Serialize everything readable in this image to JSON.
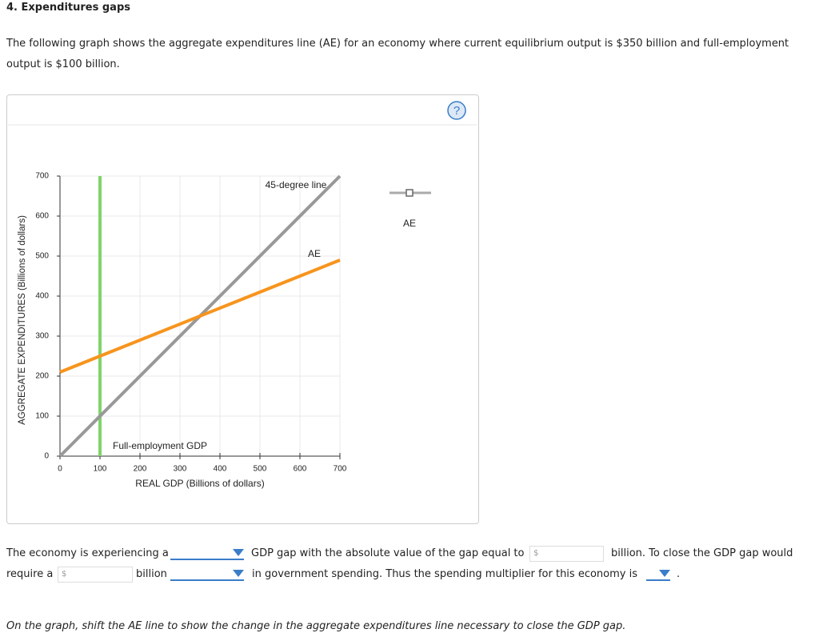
{
  "heading": "4. Expenditures gaps",
  "intro": "The following graph shows the aggregate expenditures line (AE) for an economy where current equilibrium output is $350 billion and full-employment output is $100 billion.",
  "chart_data": {
    "type": "line",
    "xlabel": "REAL GDP (Billions of dollars)",
    "ylabel": "AGGREGATE EXPENDITURES (Billions of dollars)",
    "xlim": [
      0,
      700
    ],
    "ylim": [
      0,
      700
    ],
    "xticks": [
      0,
      100,
      200,
      300,
      400,
      500,
      600,
      700
    ],
    "yticks": [
      0,
      100,
      200,
      300,
      400,
      500,
      600,
      700
    ],
    "grid": true,
    "series": [
      {
        "name": "45-degree line",
        "color": "#999999",
        "x": [
          0,
          700
        ],
        "values": [
          0,
          700
        ]
      },
      {
        "name": "AE",
        "color": "#f7941d",
        "x": [
          0,
          700
        ],
        "values": [
          210,
          490
        ]
      }
    ],
    "vline": {
      "name": "Full-employment GDP",
      "color": "#7ed46b",
      "x": 100
    },
    "legend": {
      "name": "AE"
    }
  },
  "question": {
    "row1": [
      "The economy is experiencing a",
      "GDP gap with the absolute value of the gap equal to",
      "billion. To close the GDP gap would"
    ],
    "row2": [
      "require a",
      "billion",
      "in government spending. Thus the spending multiplier for this economy is",
      "."
    ],
    "currency": "$"
  },
  "instruction": "On the graph, shift the AE line to show the change in the aggregate expenditures line necessary to close the GDP gap."
}
